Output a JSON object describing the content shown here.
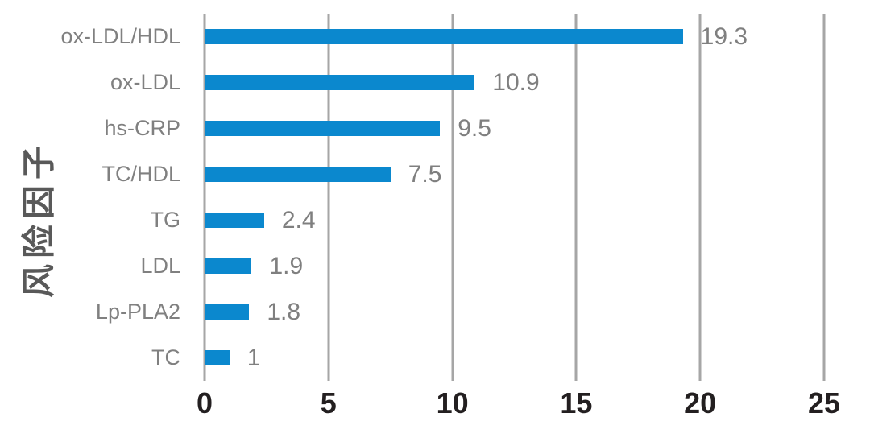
{
  "chart_data": {
    "type": "bar",
    "orientation": "horizontal",
    "title": "",
    "xlabel": "",
    "ylabel": "风险因子",
    "categories": [
      "ox-LDL/HDL",
      "ox-LDL",
      "hs-CRP",
      "TC/HDL",
      "TG",
      "LDL",
      "Lp-PLA2",
      "TC"
    ],
    "values": [
      19.3,
      10.9,
      9.5,
      7.5,
      2.4,
      1.9,
      1.8,
      1
    ],
    "value_labels": [
      "19.3",
      "10.9",
      "9.5",
      "7.5",
      "2.4",
      "1.9",
      "1.8",
      "1"
    ],
    "xlim": [
      0,
      25
    ],
    "x_ticks": [
      0,
      5,
      10,
      15,
      20,
      25
    ],
    "x_tick_labels": [
      "0",
      "5",
      "10",
      "15",
      "20",
      "25"
    ],
    "grid": "vertical-gridlines-on",
    "legend": "none",
    "colors": {
      "bar": "#0b88ce",
      "gridline": "#a6a6a6",
      "category_label": "#808080",
      "value_label": "#7f7f7f",
      "tick_label": "#231f20",
      "axis_title": "#595959",
      "background": "#ffffff"
    }
  }
}
